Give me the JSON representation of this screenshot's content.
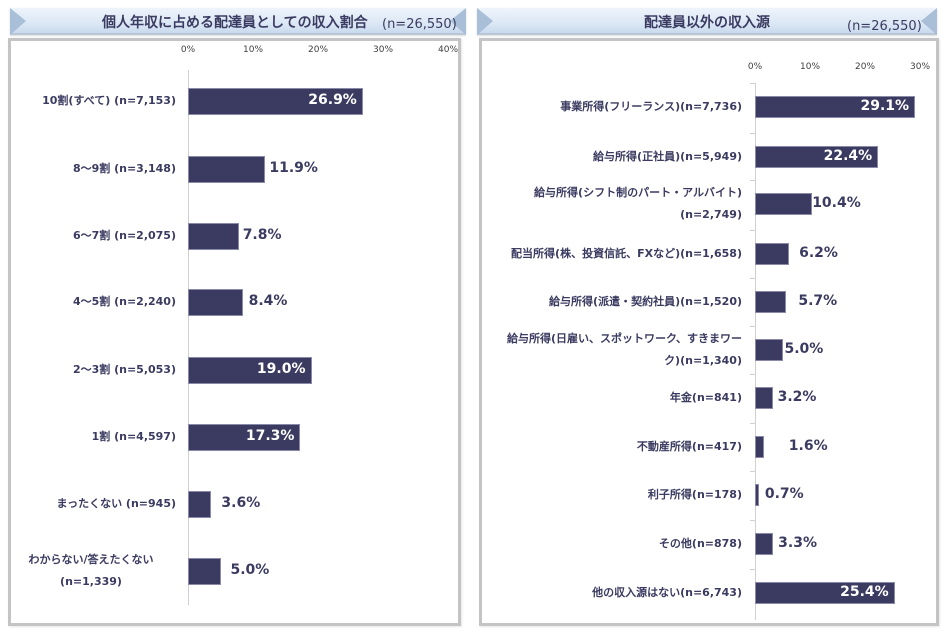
{
  "chart_data": [
    {
      "type": "bar",
      "orientation": "horizontal",
      "title": "個人年収に占める配達員としての収入割合",
      "subtitle": "(n=26,550)",
      "xlabel": "",
      "ylabel": "",
      "xlim": [
        0,
        40
      ],
      "ticks": [
        "0%",
        "10%",
        "20%",
        "30%",
        "40%"
      ],
      "grid": false,
      "legend": null,
      "categories": [
        "10割(すべて) (n=7,153)",
        "8〜9割 (n=3,148)",
        "6〜7割 (n=2,075)",
        "4〜5割 (n=2,240)",
        "2〜3割 (n=5,053)",
        "1割 (n=4,597)",
        "まったくない (n=945)",
        "わからない/答えたくない (n=1,339)"
      ],
      "values": [
        26.9,
        11.9,
        7.8,
        8.4,
        19.0,
        17.3,
        3.6,
        5.0
      ],
      "value_labels": [
        "26.9%",
        "11.9%",
        "7.8%",
        "8.4%",
        "19.0%",
        "17.3%",
        "3.6%",
        "5.0%"
      ],
      "bar_color": "#3b3b61"
    },
    {
      "type": "bar",
      "orientation": "horizontal",
      "title": "配達員以外の収入源",
      "subtitle": "(n=26,550)",
      "xlabel": "",
      "ylabel": "",
      "xlim": [
        0,
        30
      ],
      "ticks": [
        "0%",
        "10%",
        "20%",
        "30%"
      ],
      "grid": false,
      "legend": null,
      "categories": [
        "事業所得(フリーランス)(n=7,736)",
        "給与所得(正社員)(n=5,949)",
        "給与所得(シフト制のパート・アルバイト)(n=2,749)",
        "配当所得(株、投資信託、FXなど)(n=1,658)",
        "給与所得(派遣・契約社員)(n=1,520)",
        "給与所得(日雇い、スポットワーク、すきまワーク)(n=1,340)",
        "年金(n=841)",
        "不動産所得(n=417)",
        "利子所得(n=178)",
        "その他(n=878)",
        "他の収入源はない(n=6,743)"
      ],
      "values": [
        29.1,
        22.4,
        10.4,
        6.2,
        5.7,
        5.0,
        3.2,
        1.6,
        0.7,
        3.3,
        25.4
      ],
      "value_labels": [
        "29.1%",
        "22.4%",
        "10.4%",
        "6.2%",
        "5.7%",
        "5.0%",
        "3.2%",
        "1.6%",
        "0.7%",
        "3.3%",
        "25.4%"
      ],
      "bar_color": "#3b3b61"
    }
  ],
  "left": {
    "title": "個人年収に占める配達員としての収入割合",
    "n": "(n=26,550)",
    "ticks": [
      "0%",
      "10%",
      "20%",
      "30%",
      "40%"
    ],
    "rows": [
      {
        "label": "10割(すべて) (n=7,153)",
        "value": "26.9%"
      },
      {
        "label": "8〜9割 (n=3,148)",
        "value": "11.9%"
      },
      {
        "label": "6〜7割 (n=2,075)",
        "value": "7.8%"
      },
      {
        "label": "4〜5割 (n=2,240)",
        "value": "8.4%"
      },
      {
        "label": "2〜3割 (n=5,053)",
        "value": "19.0%"
      },
      {
        "label": "1割 (n=4,597)",
        "value": "17.3%"
      },
      {
        "label": "まったくない (n=945)",
        "value": "3.6%"
      },
      {
        "label": "わからない/答えたくない (n=1,339)",
        "value": "5.0%"
      }
    ]
  },
  "right": {
    "title": "配達員以外の収入源",
    "n": "(n=26,550)",
    "ticks": [
      "0%",
      "10%",
      "20%",
      "30%"
    ],
    "rows": [
      {
        "label": "事業所得(フリーランス)(n=7,736)",
        "value": "29.1%"
      },
      {
        "label": "給与所得(正社員)(n=5,949)",
        "value": "22.4%"
      },
      {
        "label": "給与所得(シフト制のパート・アルバイト)(n=2,749)",
        "value": "10.4%"
      },
      {
        "label": "配当所得(株、投資信託、FXなど)(n=1,658)",
        "value": "6.2%"
      },
      {
        "label": "給与所得(派遣・契約社員)(n=1,520)",
        "value": "5.7%"
      },
      {
        "label": "給与所得(日雇い、スポットワーク、すきまワーク)(n=1,340)",
        "value": "5.0%"
      },
      {
        "label": "年金(n=841)",
        "value": "3.2%"
      },
      {
        "label": "不動産所得(n=417)",
        "value": "1.6%"
      },
      {
        "label": "利子所得(n=178)",
        "value": "0.7%"
      },
      {
        "label": "その他(n=878)",
        "value": "3.3%"
      },
      {
        "label": "他の収入源はない(n=6,743)",
        "value": "25.4%"
      }
    ]
  }
}
